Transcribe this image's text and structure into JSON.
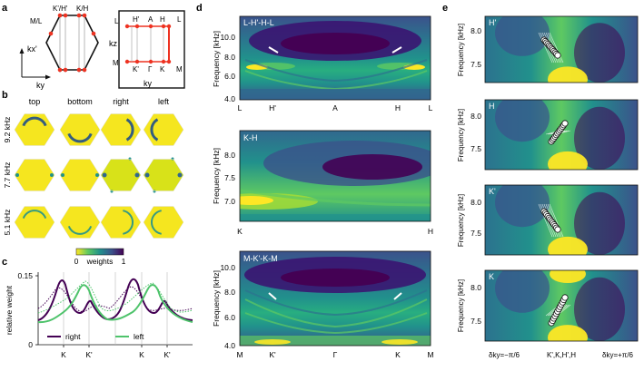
{
  "panel_labels": {
    "a": "a",
    "b": "b",
    "c": "c",
    "d": "d",
    "e": "e"
  },
  "colors": {
    "yellow": "#fde725",
    "teal": "#21918c",
    "purple": "#440154",
    "dark_purple": "#3b0f70",
    "right_line": "#440154",
    "left_line": "#4ec36b"
  },
  "panel_a": {
    "left": {
      "corner_top_left": "K'/H'",
      "corner_top_right": "K/H",
      "corner_left": "M/L",
      "axis_vertical": "kx'",
      "axis_horizontal": "ky"
    },
    "right": {
      "top_labels": [
        "L",
        "H'",
        "A",
        "H",
        "L"
      ],
      "bottom_labels": [
        "M",
        "K'",
        "Γ",
        "K",
        "M"
      ],
      "axis_vertical": "kz",
      "axis_horizontal": "ky"
    }
  },
  "panel_b": {
    "columns": [
      "top",
      "bottom",
      "right",
      "left"
    ],
    "rows": [
      "9.2 kHz",
      "7.7 kHz",
      "5.1 kHz"
    ],
    "colorbar": {
      "min": "0",
      "label": "weights",
      "max": "1"
    }
  },
  "panel_c": {
    "ylabel": "relative weight",
    "yticks": [
      "0",
      "0.15"
    ],
    "xticks": [
      "K",
      "K'",
      "K",
      "K'"
    ],
    "legend": [
      "right",
      "left"
    ]
  },
  "panel_d": {
    "ylabel": "Frequency [kHz]",
    "subplots": [
      {
        "title": "L-H'-H-L",
        "yticks": [
          "10.0",
          "8.0",
          "6.0",
          "4.0"
        ],
        "xticks": [
          "L",
          "H'",
          "A",
          "H",
          "L"
        ]
      },
      {
        "title": "K-H",
        "yticks": [
          "8.0",
          "7.5",
          "7.0"
        ],
        "xticks": [
          "K",
          "H"
        ]
      },
      {
        "title": "M-K'-K-M",
        "yticks": [
          "10.0",
          "8.0",
          "6.0",
          "4.0"
        ],
        "xticks": [
          "M",
          "K'",
          "Γ",
          "K",
          "M"
        ]
      }
    ]
  },
  "panel_e": {
    "ylabel": "Frequency [kHz]",
    "subplots": [
      {
        "title": "H'",
        "yticks": [
          "8.0",
          "7.5"
        ]
      },
      {
        "title": "H",
        "yticks": [
          "8.0",
          "7.5"
        ]
      },
      {
        "title": "K'",
        "yticks": [
          "8.0",
          "7.5"
        ]
      },
      {
        "title": "K",
        "yticks": [
          "8.0",
          "7.5"
        ]
      }
    ],
    "xticks": [
      "δky=−π/6",
      "K',K,H',H",
      "δky=+π/6"
    ]
  }
}
